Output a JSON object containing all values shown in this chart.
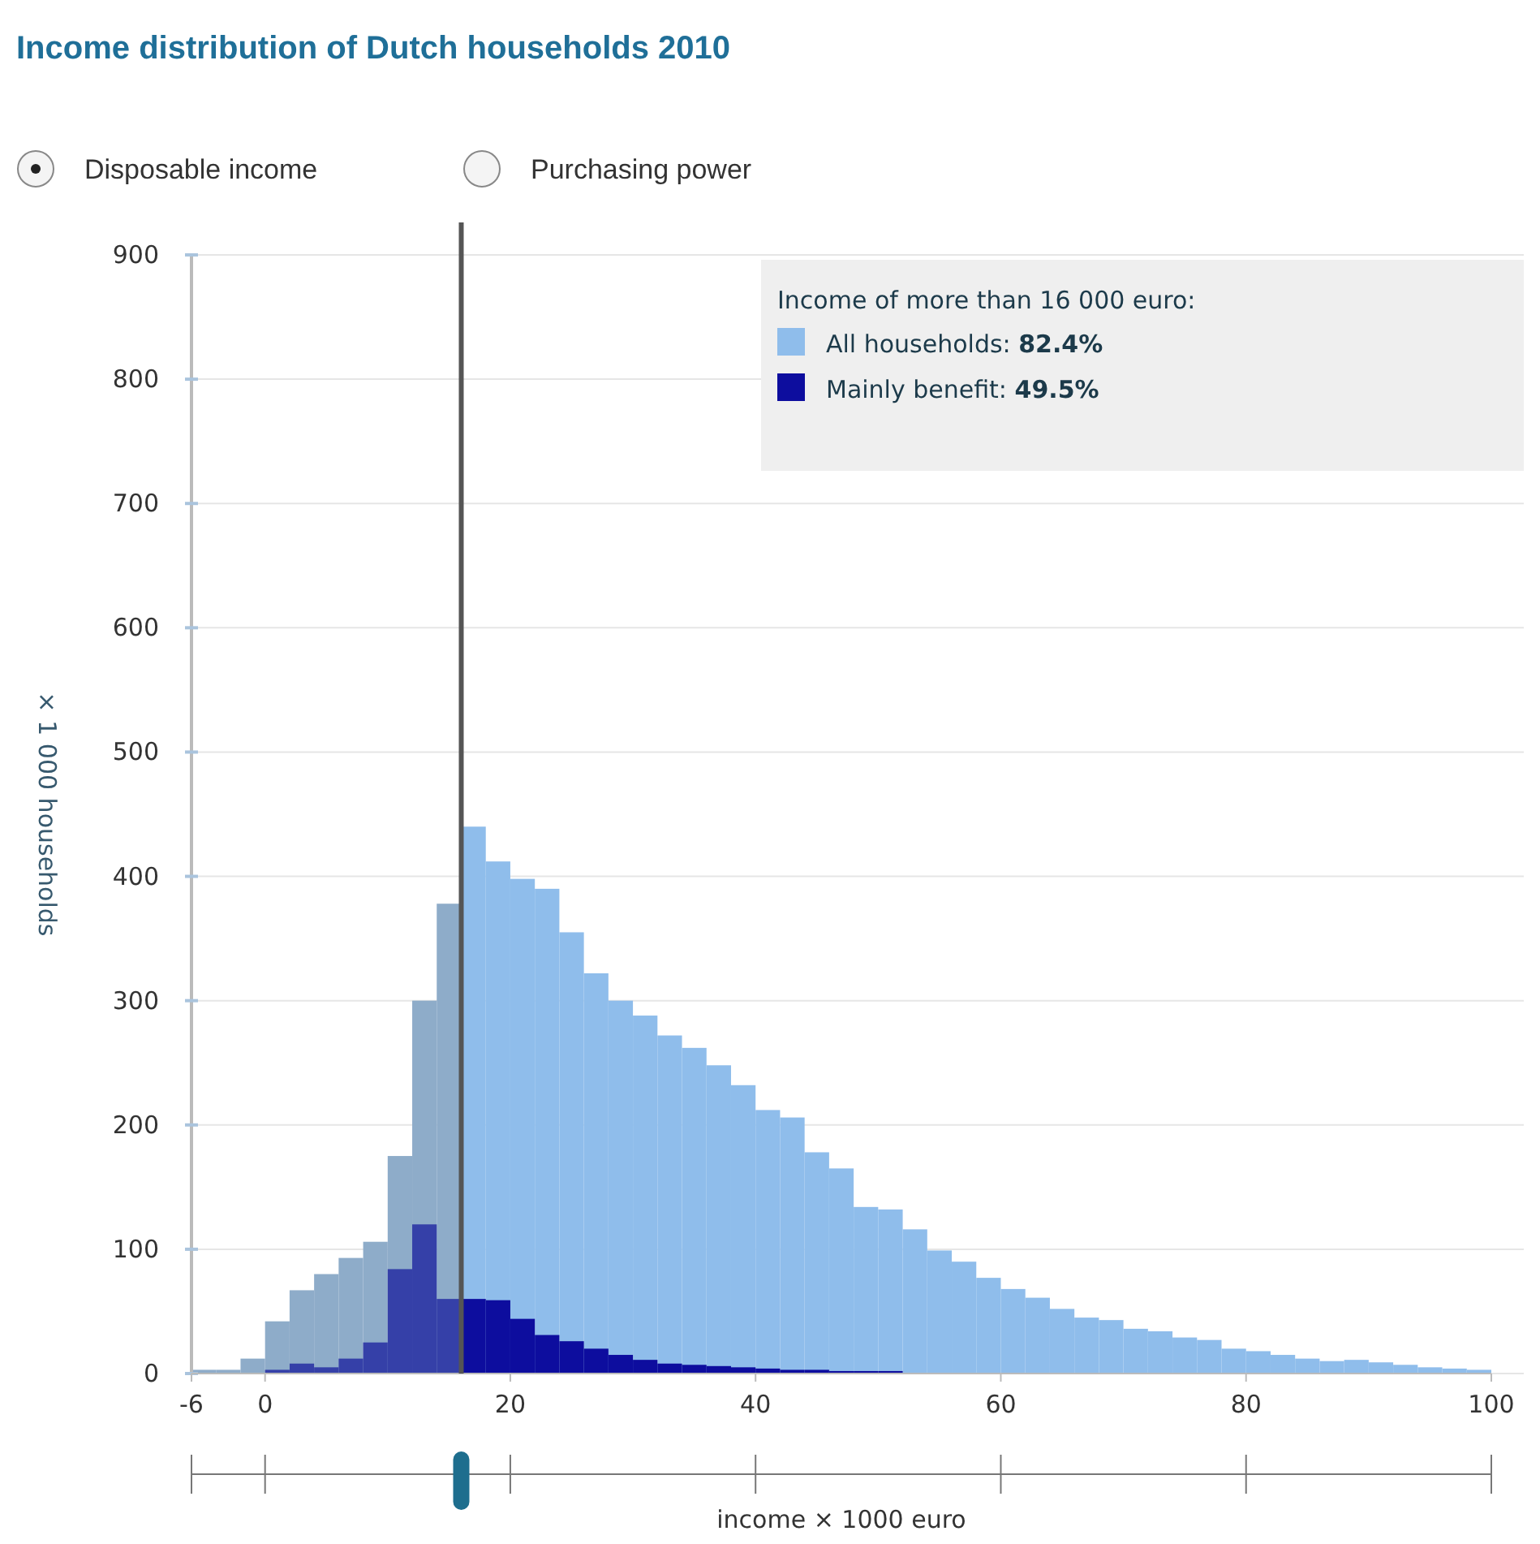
{
  "chart_data": {
    "type": "histogram",
    "title": "Income distribution of Dutch households 2010",
    "xlabel": "income × 1000 euro",
    "ylabel": "× 1 000 households",
    "legend_title": "Income of more than 16 000 euro:",
    "annotations": [
      "Disposable income",
      "Purchasing power"
    ],
    "bins": [
      -6,
      -4,
      -2,
      0,
      2,
      4,
      6,
      8,
      10,
      12,
      14,
      16,
      18,
      20,
      22,
      24,
      26,
      28,
      30,
      32,
      34,
      36,
      38,
      40,
      42,
      44,
      46,
      48,
      50,
      52,
      54,
      56,
      58,
      60,
      62,
      64,
      66,
      68,
      70,
      72,
      74,
      76,
      78,
      80,
      82,
      84,
      86,
      88,
      90,
      92,
      94,
      96,
      98,
      100
    ],
    "series": [
      {
        "name": "All households: 82.4%",
        "color": "#8fbdeb",
        "colors": [
          "#8eacc9",
          "#8eacc9",
          "#8eacc9",
          "#8eacc9",
          "#8eacc9",
          "#8eacc9",
          "#8eacc9",
          "#8eacc9",
          "#8eacc9",
          "#8eacc9",
          "#8eacc9",
          "#8fbdeb",
          "#8fbdeb",
          "#8fbdeb",
          "#8fbdeb",
          "#8fbdeb",
          "#8fbdeb",
          "#8fbdeb",
          "#8fbdeb",
          "#8fbdeb",
          "#8fbdeb",
          "#8fbdeb",
          "#8fbdeb",
          "#8fbdeb",
          "#8fbdeb",
          "#8fbdeb",
          "#8fbdeb",
          "#8fbdeb",
          "#8fbdeb",
          "#8fbdeb",
          "#8fbdeb",
          "#8fbdeb",
          "#8fbdeb",
          "#8fbdeb",
          "#8fbdeb",
          "#8fbdeb",
          "#8fbdeb",
          "#8fbdeb",
          "#8fbdeb",
          "#8fbdeb",
          "#8fbdeb",
          "#8fbdeb",
          "#8fbdeb",
          "#8fbdeb",
          "#8fbdeb",
          "#8fbdeb",
          "#8fbdeb",
          "#8fbdeb",
          "#8fbdeb",
          "#8fbdeb",
          "#8fbdeb",
          "#8fbdeb",
          "#8fbdeb"
        ],
        "values": [
          3,
          3,
          12,
          42,
          67,
          80,
          93,
          106,
          175,
          300,
          378,
          440,
          412,
          398,
          390,
          355,
          322,
          300,
          288,
          272,
          262,
          248,
          232,
          212,
          206,
          178,
          165,
          134,
          132,
          116,
          99,
          90,
          77,
          68,
          61,
          52,
          45,
          43,
          36,
          34,
          29,
          27,
          20,
          18,
          15,
          12,
          10,
          11,
          9,
          7,
          5,
          4,
          3
        ]
      },
      {
        "name": "Mainly benefit: 49.5%",
        "color": "#0d0d9e",
        "colors": [
          "#3540a8",
          "#3540a8",
          "#3540a8",
          "#3540a8",
          "#3540a8",
          "#3540a8",
          "#3540a8",
          "#3540a8",
          "#3540a8",
          "#3540a8",
          "#3540a8",
          "#0d0d9e",
          "#0d0d9e",
          "#0d0d9e",
          "#0d0d9e",
          "#0d0d9e",
          "#0d0d9e",
          "#0d0d9e",
          "#0d0d9e",
          "#0d0d9e",
          "#0d0d9e",
          "#0d0d9e",
          "#0d0d9e",
          "#0d0d9e",
          "#0d0d9e",
          "#0d0d9e",
          "#0d0d9e",
          "#0d0d9e",
          "#0d0d9e",
          "#0d0d9e",
          "#0d0d9e",
          "#0d0d9e",
          "#0d0d9e",
          "#0d0d9e",
          "#0d0d9e",
          "#0d0d9e",
          "#0d0d9e",
          "#0d0d9e",
          "#0d0d9e",
          "#0d0d9e",
          "#0d0d9e",
          "#0d0d9e",
          "#0d0d9e",
          "#0d0d9e",
          "#0d0d9e",
          "#0d0d9e",
          "#0d0d9e",
          "#0d0d9e",
          "#0d0d9e",
          "#0d0d9e",
          "#0d0d9e",
          "#0d0d9e",
          "#0d0d9e"
        ],
        "values": [
          0,
          0,
          0,
          3,
          8,
          5,
          12,
          25,
          84,
          120,
          60,
          60,
          59,
          44,
          31,
          26,
          20,
          15,
          11,
          8,
          7,
          6,
          5,
          4,
          3,
          3,
          2,
          2,
          2,
          0,
          0,
          0,
          0,
          0,
          0,
          0,
          0,
          0,
          0,
          0,
          0,
          0,
          0,
          0,
          0,
          0,
          0,
          0,
          0,
          0,
          0,
          0,
          0
        ]
      }
    ],
    "xlim": [
      -6,
      100
    ],
    "xticks": [
      -6,
      0,
      20,
      40,
      60,
      80,
      100
    ],
    "ylim": [
      0,
      900
    ],
    "yticks": [
      0,
      100,
      200,
      300,
      400,
      500,
      600,
      700,
      800,
      900
    ],
    "grid": "y",
    "legend": "top right",
    "ref_lines": [
      {
        "axis": "x",
        "value": 16,
        "color": "#555555"
      }
    ]
  }
}
